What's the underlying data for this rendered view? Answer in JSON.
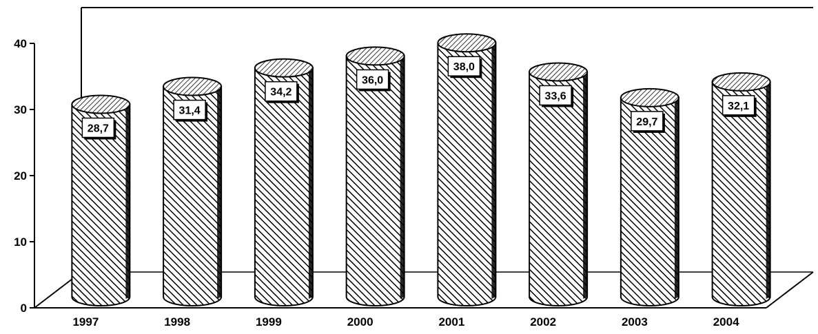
{
  "chart_data": {
    "type": "bar",
    "style": "3d-cylinder",
    "categories": [
      "1997",
      "1998",
      "1999",
      "2000",
      "2001",
      "2002",
      "2003",
      "2004"
    ],
    "values": [
      28.7,
      31.4,
      34.2,
      36.0,
      38.0,
      33.6,
      29.7,
      32.1
    ],
    "data_labels": [
      "28,7",
      "31,4",
      "34,2",
      "36,0",
      "38,0",
      "33,6",
      "29,7",
      "32,1"
    ],
    "ylim": [
      0,
      40
    ],
    "y_ticks": [
      "0",
      "10",
      "20",
      "30",
      "40"
    ],
    "grid": false,
    "legend": "none",
    "title": "",
    "xlabel": "",
    "ylabel": "",
    "colors": {
      "bar_fill": "#ffffff",
      "hatch": "#000000",
      "axis": "#000000"
    }
  }
}
